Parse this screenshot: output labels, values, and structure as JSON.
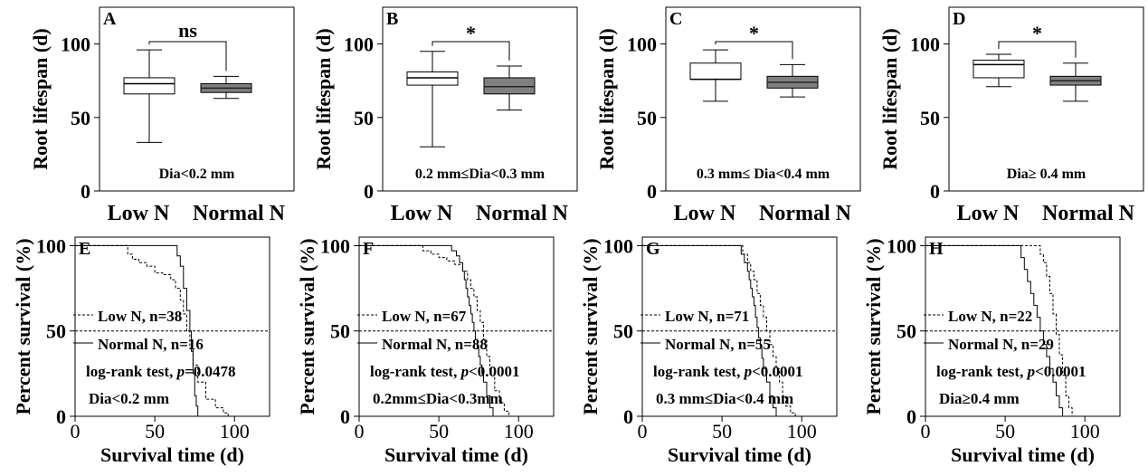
{
  "chart_data": [
    {
      "panel": "A",
      "type": "box",
      "ylabel": "Root lifespan (d)",
      "yticks": [
        0,
        50,
        100
      ],
      "ylim": [
        0,
        125
      ],
      "categories": [
        "Low N",
        "Normal N"
      ],
      "boxes": [
        {
          "min": 33,
          "q1": 66,
          "median": 73,
          "q3": 77,
          "max": 96
        },
        {
          "min": 63,
          "q1": 67,
          "median": 70,
          "q3": 73,
          "max": 78
        }
      ],
      "significance": "ns",
      "label": "Dia<0.2 mm"
    },
    {
      "panel": "B",
      "type": "box",
      "ylabel": "Root lifespan (d)",
      "yticks": [
        0,
        50,
        100
      ],
      "ylim": [
        0,
        125
      ],
      "categories": [
        "Low N",
        "Normal N"
      ],
      "boxes": [
        {
          "min": 30,
          "q1": 72,
          "median": 77,
          "q3": 81,
          "max": 95
        },
        {
          "min": 55,
          "q1": 66,
          "median": 71,
          "q3": 77,
          "max": 85
        }
      ],
      "significance": "*",
      "label": "0.2 mm≤Dia<0.3 mm"
    },
    {
      "panel": "C",
      "type": "box",
      "ylabel": "Root lifespan (d)",
      "yticks": [
        0,
        50,
        100
      ],
      "ylim": [
        0,
        125
      ],
      "categories": [
        "Low N",
        "Normal N"
      ],
      "boxes": [
        {
          "min": 61,
          "q1": 76,
          "median": 76,
          "q3": 87,
          "max": 96
        },
        {
          "min": 64,
          "q1": 70,
          "median": 74,
          "q3": 78,
          "max": 86
        }
      ],
      "significance": "*",
      "label": "0.3 mm≤ Dia<0.4 mm"
    },
    {
      "panel": "D",
      "type": "box",
      "ylabel": "Root lifespan (d)",
      "yticks": [
        0,
        50,
        100
      ],
      "ylim": [
        0,
        125
      ],
      "categories": [
        "Low N",
        "Normal N"
      ],
      "boxes": [
        {
          "min": 71,
          "q1": 77,
          "median": 86,
          "q3": 89,
          "max": 93
        },
        {
          "min": 61,
          "q1": 72,
          "median": 75,
          "q3": 78,
          "max": 87
        }
      ],
      "significance": "*",
      "label": "Dia≥ 0.4 mm"
    },
    {
      "panel": "E",
      "type": "line",
      "xlabel": "Survival time (d)",
      "ylabel": "Percent survival  (%)",
      "xticks": [
        0,
        50,
        100
      ],
      "yticks": [
        0,
        50,
        100
      ],
      "xlim": [
        0,
        122
      ],
      "ylim": [
        0,
        105
      ],
      "series": [
        {
          "name": "Low N, n=38",
          "style": "dashed",
          "x": [
            0,
            30,
            33,
            36,
            40,
            45,
            50,
            55,
            60,
            63,
            66,
            68,
            70,
            72,
            74,
            77,
            82,
            88,
            93,
            96
          ],
          "y": [
            100,
            100,
            95,
            92,
            90,
            88,
            84,
            83,
            80,
            75,
            68,
            60,
            50,
            40,
            30,
            20,
            10,
            5,
            2,
            0
          ]
        },
        {
          "name": "Normal N, n=16",
          "style": "solid",
          "x": [
            0,
            62,
            64,
            66,
            68,
            70,
            72,
            73,
            74,
            75,
            76,
            77
          ],
          "y": [
            100,
            100,
            94,
            88,
            75,
            62,
            50,
            38,
            25,
            12,
            6,
            0
          ]
        }
      ],
      "test": "log-rank test,",
      "pvalue": "=0.0478",
      "label": "Dia<0.2 mm"
    },
    {
      "panel": "F",
      "type": "line",
      "xlabel": "Survival time (d)",
      "ylabel": "Percent survival  (%)",
      "xticks": [
        0,
        50,
        100
      ],
      "yticks": [
        0,
        50,
        100
      ],
      "xlim": [
        0,
        122
      ],
      "ylim": [
        0,
        105
      ],
      "series": [
        {
          "name": "Low N, n=67",
          "style": "dashed",
          "x": [
            0,
            35,
            40,
            45,
            50,
            55,
            60,
            65,
            68,
            70,
            72,
            74,
            76,
            78,
            80,
            82,
            85,
            88,
            91,
            94
          ],
          "y": [
            100,
            100,
            97,
            95,
            93,
            91,
            89,
            85,
            80,
            75,
            70,
            62,
            55,
            45,
            35,
            25,
            15,
            8,
            3,
            0
          ]
        },
        {
          "name": "Normal N, n=88",
          "style": "solid",
          "x": [
            0,
            55,
            58,
            61,
            63,
            65,
            66,
            67,
            68,
            69,
            70,
            71,
            72,
            73,
            74,
            75,
            76,
            77,
            78,
            80,
            82,
            84
          ],
          "y": [
            100,
            100,
            97,
            94,
            90,
            85,
            80,
            75,
            70,
            65,
            60,
            55,
            50,
            45,
            40,
            35,
            30,
            25,
            20,
            12,
            5,
            0
          ]
        }
      ],
      "test": "log-rank test,",
      "pvalue": "<0.0001",
      "label": "0.2mm≤Dia<0.3mm"
    },
    {
      "panel": "G",
      "type": "line",
      "xlabel": "Survival time (d)",
      "ylabel": "Percent survival  (%)",
      "xticks": [
        0,
        50,
        100
      ],
      "yticks": [
        0,
        50,
        100
      ],
      "xlim": [
        0,
        122
      ],
      "ylim": [
        0,
        105
      ],
      "series": [
        {
          "name": "Low N, n=71",
          "style": "dashed",
          "x": [
            0,
            60,
            63,
            66,
            68,
            70,
            72,
            74,
            76,
            78,
            80,
            82,
            84,
            86,
            88,
            90,
            93,
            96
          ],
          "y": [
            100,
            100,
            95,
            90,
            85,
            80,
            72,
            65,
            58,
            50,
            42,
            35,
            28,
            20,
            12,
            6,
            2,
            0
          ]
        },
        {
          "name": "Normal N, n=55",
          "style": "solid",
          "x": [
            0,
            60,
            62,
            64,
            66,
            67,
            68,
            69,
            70,
            71,
            72,
            73,
            74,
            75,
            76,
            78,
            80,
            82,
            84
          ],
          "y": [
            100,
            100,
            95,
            90,
            85,
            80,
            75,
            70,
            65,
            58,
            52,
            46,
            40,
            34,
            28,
            20,
            12,
            5,
            0
          ]
        }
      ],
      "test": "log-rank test,",
      "pvalue": "<0.0001",
      "label": "0.3 mm≤Dia<0.4 mm"
    },
    {
      "panel": "H",
      "type": "line",
      "xlabel": "Survival time (d)",
      "ylabel": "Percent survival  (%)",
      "xticks": [
        0,
        50,
        100
      ],
      "yticks": [
        0,
        50,
        100
      ],
      "xlim": [
        0,
        122
      ],
      "ylim": [
        0,
        105
      ],
      "series": [
        {
          "name": "Low N, n=22",
          "style": "dashed",
          "x": [
            0,
            70,
            72,
            74,
            76,
            78,
            80,
            82,
            84,
            86,
            88,
            90,
            92
          ],
          "y": [
            100,
            100,
            95,
            90,
            82,
            72,
            60,
            48,
            36,
            24,
            12,
            5,
            0
          ]
        },
        {
          "name": "Normal N, n=29",
          "style": "solid",
          "x": [
            0,
            58,
            60,
            62,
            64,
            66,
            68,
            70,
            72,
            74,
            76,
            78,
            80,
            82,
            84,
            86
          ],
          "y": [
            100,
            100,
            93,
            86,
            79,
            72,
            65,
            58,
            50,
            42,
            35,
            28,
            20,
            12,
            5,
            0
          ]
        }
      ],
      "test": "log-rank test,",
      "pvalue": "<0.0001",
      "label": "Dia≥0.4 mm"
    }
  ]
}
